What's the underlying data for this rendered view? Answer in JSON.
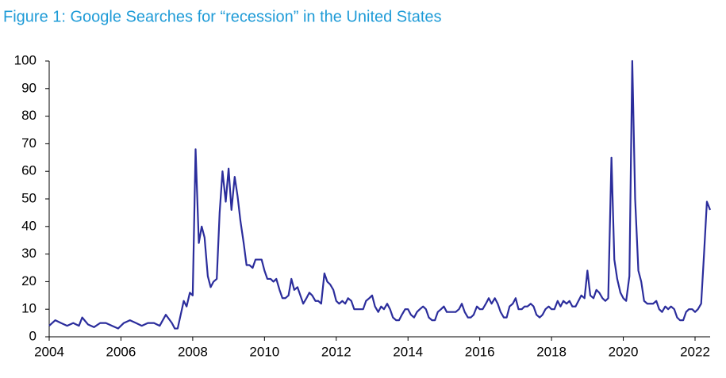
{
  "chart_data": {
    "type": "line",
    "title": "Figure 1: Google Searches for “recession” in the United States",
    "xlim": [
      2004,
      2022.42
    ],
    "xticks": [
      2004,
      2006,
      2008,
      2010,
      2012,
      2014,
      2016,
      2018,
      2020,
      2022
    ],
    "ylim": [
      0,
      100
    ],
    "yticks": [
      0,
      10,
      20,
      30,
      40,
      50,
      60,
      70,
      80,
      90,
      100
    ],
    "series": [
      {
        "color": "#2b2d9c",
        "x": [
          2004,
          2004.17,
          2004.33,
          2004.5,
          2004.67,
          2004.83,
          2004.92,
          2005.08,
          2005.25,
          2005.42,
          2005.58,
          2005.75,
          2005.92,
          2006.08,
          2006.25,
          2006.42,
          2006.58,
          2006.75,
          2006.92,
          2007.08,
          2007.25,
          2007.42,
          2007.5,
          2007.58,
          2007.75,
          2007.83,
          2007.92,
          2008,
          2008.08,
          2008.17,
          2008.25,
          2008.33,
          2008.42,
          2008.5,
          2008.58,
          2008.67,
          2008.75,
          2008.83,
          2008.92,
          2009,
          2009.08,
          2009.17,
          2009.25,
          2009.33,
          2009.42,
          2009.5,
          2009.58,
          2009.67,
          2009.75,
          2009.83,
          2009.92,
          2010,
          2010.08,
          2010.17,
          2010.25,
          2010.33,
          2010.42,
          2010.5,
          2010.58,
          2010.67,
          2010.75,
          2010.83,
          2010.92,
          2011,
          2011.08,
          2011.17,
          2011.25,
          2011.33,
          2011.42,
          2011.5,
          2011.58,
          2011.67,
          2011.75,
          2011.83,
          2011.92,
          2012,
          2012.08,
          2012.17,
          2012.25,
          2012.33,
          2012.42,
          2012.5,
          2012.58,
          2012.67,
          2012.75,
          2012.83,
          2012.92,
          2013,
          2013.08,
          2013.17,
          2013.25,
          2013.33,
          2013.42,
          2013.5,
          2013.58,
          2013.67,
          2013.75,
          2013.83,
          2013.92,
          2014,
          2014.08,
          2014.17,
          2014.25,
          2014.33,
          2014.42,
          2014.5,
          2014.58,
          2014.67,
          2014.75,
          2014.83,
          2014.92,
          2015,
          2015.08,
          2015.17,
          2015.25,
          2015.33,
          2015.42,
          2015.5,
          2015.58,
          2015.67,
          2015.75,
          2015.83,
          2015.92,
          2016,
          2016.08,
          2016.17,
          2016.25,
          2016.33,
          2016.42,
          2016.5,
          2016.58,
          2016.67,
          2016.75,
          2016.83,
          2016.92,
          2017,
          2017.08,
          2017.17,
          2017.25,
          2017.33,
          2017.42,
          2017.5,
          2017.58,
          2017.67,
          2017.75,
          2017.83,
          2017.92,
          2018,
          2018.08,
          2018.17,
          2018.25,
          2018.33,
          2018.42,
          2018.5,
          2018.58,
          2018.67,
          2018.75,
          2018.83,
          2018.92,
          2019,
          2019.08,
          2019.17,
          2019.25,
          2019.33,
          2019.42,
          2019.5,
          2019.58,
          2019.67,
          2019.75,
          2019.83,
          2019.92,
          2020,
          2020.08,
          2020.17,
          2020.25,
          2020.33,
          2020.42,
          2020.5,
          2020.58,
          2020.67,
          2020.75,
          2020.83,
          2020.92,
          2021,
          2021.08,
          2021.17,
          2021.25,
          2021.33,
          2021.42,
          2021.5,
          2021.58,
          2021.67,
          2021.75,
          2021.83,
          2021.92,
          2022,
          2022.08,
          2022.17,
          2022.25,
          2022.33,
          2022.42
        ],
        "values": [
          4,
          6,
          5,
          4,
          5,
          4,
          7,
          4.5,
          3.5,
          5,
          5,
          4,
          3,
          5,
          6,
          5,
          4,
          5,
          5,
          4,
          8,
          5,
          3,
          3,
          13,
          11,
          16,
          15,
          68,
          34,
          40,
          36,
          22,
          18,
          20,
          21,
          45,
          60,
          49,
          61,
          46,
          58,
          51,
          42,
          34,
          26,
          26,
          25,
          28,
          28,
          28,
          24,
          21,
          21,
          20,
          21,
          17,
          14,
          14,
          15,
          21,
          17,
          18,
          15,
          12,
          14,
          16,
          15,
          13,
          13,
          12,
          23,
          20,
          19,
          17,
          13,
          12,
          13,
          12,
          14,
          13,
          10,
          10,
          10,
          10,
          13,
          14,
          15,
          11,
          9,
          11,
          10,
          12,
          10,
          7,
          6,
          6,
          8,
          10,
          10,
          8,
          7,
          9,
          10,
          11,
          10,
          7,
          6,
          6,
          9,
          10,
          11,
          9,
          9,
          9,
          9,
          10,
          12,
          9,
          7,
          7,
          8,
          11,
          10,
          10,
          12,
          14,
          12,
          14,
          12,
          9,
          7,
          7,
          11,
          12,
          14,
          10,
          10,
          11,
          11,
          12,
          11,
          8,
          7,
          8,
          10,
          11,
          10,
          10,
          13,
          11,
          13,
          12,
          13,
          11,
          11,
          13,
          15,
          14,
          24,
          15,
          14,
          17,
          16,
          14,
          13,
          14,
          65,
          28,
          21,
          16,
          14,
          13,
          22,
          100,
          50,
          24,
          20,
          13,
          12,
          12,
          12,
          13,
          10,
          9,
          11,
          10,
          11,
          10,
          7,
          6,
          6,
          9,
          10,
          10,
          9,
          10,
          12,
          30,
          49,
          46
        ]
      }
    ]
  }
}
